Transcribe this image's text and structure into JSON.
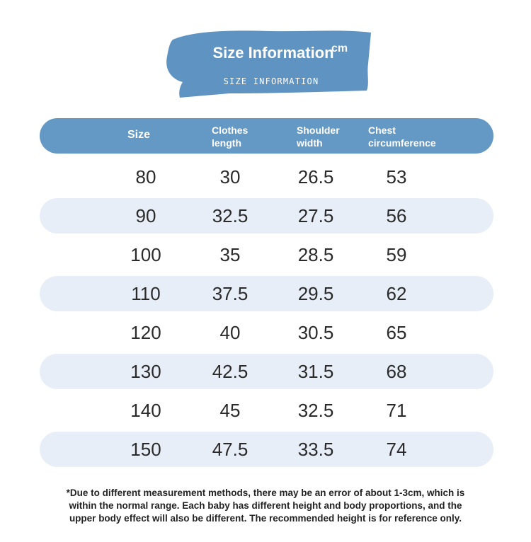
{
  "banner": {
    "title": "Size Information",
    "unit": "cm",
    "subtitle": "SIZE INFORMATION",
    "color": "#5f93c2"
  },
  "table": {
    "headers": {
      "size": "Size",
      "clothes_length": [
        "Clothes",
        "length"
      ],
      "shoulder_width": [
        "Shoulder",
        "width"
      ],
      "chest": [
        "Chest",
        "circumference"
      ]
    },
    "rows": [
      {
        "size": "80",
        "length": "30",
        "shoulder": "26.5",
        "chest": "53"
      },
      {
        "size": "90",
        "length": "32.5",
        "shoulder": "27.5",
        "chest": "56"
      },
      {
        "size": "100",
        "length": "35",
        "shoulder": "28.5",
        "chest": "59"
      },
      {
        "size": "110",
        "length": "37.5",
        "shoulder": "29.5",
        "chest": "62"
      },
      {
        "size": "120",
        "length": "40",
        "shoulder": "30.5",
        "chest": "65"
      },
      {
        "size": "130",
        "length": "42.5",
        "shoulder": "31.5",
        "chest": "68"
      },
      {
        "size": "140",
        "length": "45",
        "shoulder": "32.5",
        "chest": "71"
      },
      {
        "size": "150",
        "length": "47.5",
        "shoulder": "33.5",
        "chest": "74"
      }
    ]
  },
  "note": {
    "lines": [
      "*Due to different measurement methods, there may be an error of about 1-3cm, which is",
      "within the normal range. Each baby has different height and body proportions, and the",
      "upper body effect will also be different. The recommended height is for reference only."
    ]
  }
}
